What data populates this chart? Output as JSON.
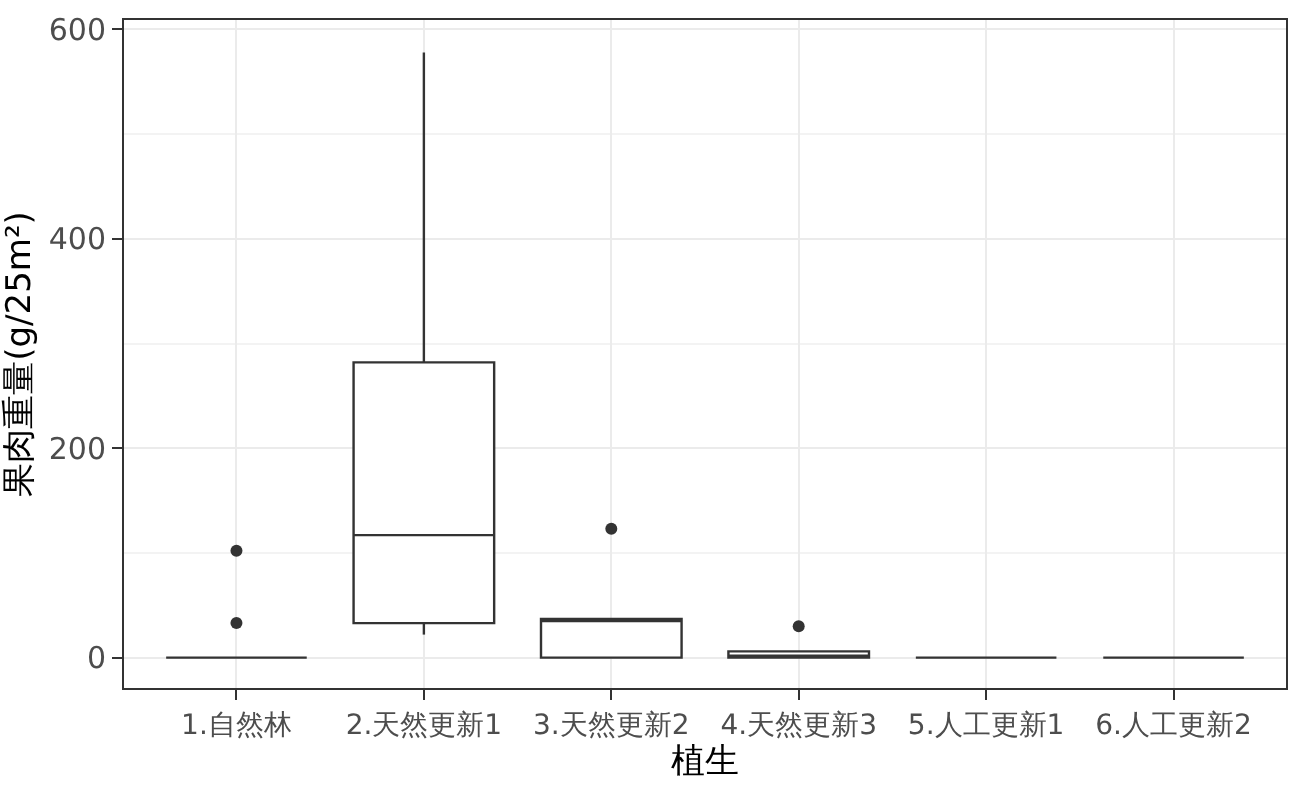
{
  "chart_data": {
    "type": "box",
    "xlabel": "植生",
    "ylabel": "果肉重量(g/25m²)",
    "categories": [
      "1.自然林",
      "2.天然更新1",
      "3.天然更新2",
      "4.天然更新3",
      "5.人工更新1",
      "6.人工更新2"
    ],
    "boxes": [
      {
        "low": 0,
        "q1": 0,
        "median": 0,
        "q3": 0,
        "high": 0,
        "outliers": [
          33,
          102
        ]
      },
      {
        "low": 22,
        "q1": 33,
        "median": 117,
        "q3": 282,
        "high": 578
      },
      {
        "low": 0,
        "q1": 0,
        "median": 35,
        "q3": 37,
        "high": 37,
        "outliers": [
          123
        ]
      },
      {
        "low": 0,
        "q1": 0,
        "median": 1,
        "q3": 6,
        "high": 6,
        "outliers": [
          30
        ]
      },
      {
        "low": 0,
        "q1": 0,
        "median": 0,
        "q3": 0,
        "high": 0
      },
      {
        "low": 0,
        "q1": 0,
        "median": 0,
        "q3": 0,
        "high": 0
      }
    ],
    "color": "#333333",
    "ylim": [
      -29,
      609
    ],
    "yticks": [
      0,
      200,
      400,
      600
    ],
    "grid": true
  }
}
